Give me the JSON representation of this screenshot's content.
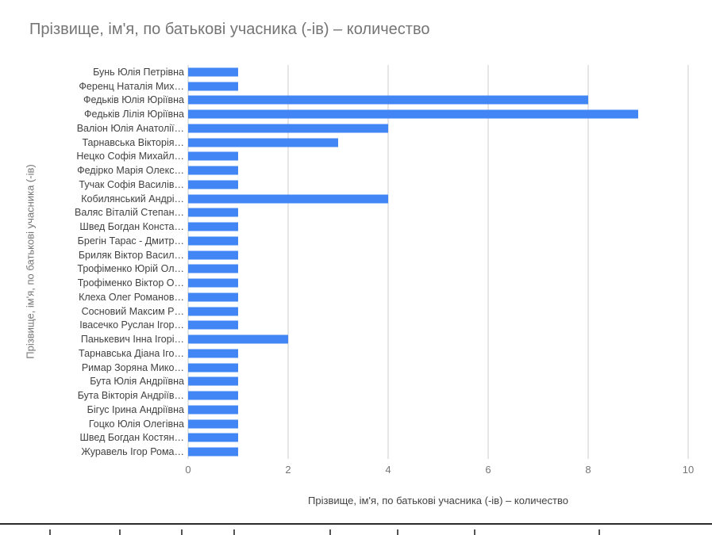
{
  "colors": {
    "bar": "#4285f4",
    "gridline": "#cccccc",
    "title_text": "#757575",
    "axis_text": "#757575",
    "category_text": "#424242",
    "background": "#ffffff"
  },
  "chart_data": {
    "type": "bar",
    "orientation": "horizontal",
    "title": "Прізвище, ім'я, по батькові учасника (-ів) – количество",
    "xlabel": "Прізвище, ім'я, по батькові учасника (-ів) – количество",
    "ylabel": "Прізвище, ім'я, по батькові учасника (-ів)",
    "xlim": [
      0,
      10
    ],
    "x_ticks": [
      0,
      2,
      4,
      6,
      8,
      10
    ],
    "grid": true,
    "legend": "none",
    "categories": [
      "Бунь Юлія Петрівна",
      "Ференц Наталія Мих…",
      "Федьків Юлія Юріївна",
      "Федьків Лілія Юріївна",
      "Валіон Юлія Анатолії…",
      "Тарнавська Вікторія…",
      "Нецко Софія Михайл…",
      "Федірко Марія Олекс…",
      "Тучак Софія Василів…",
      "Кобилянський Андрі…",
      "Валяс Віталій Степан…",
      "Швед Богдан Конста…",
      "Брегін Тарас - Дмитр…",
      "Бриляк Віктор Васил…",
      "Трофіменко Юрій Ол…",
      "Трофіменко Віктор О…",
      "Клеха Олег Романов…",
      "Сосновий Максим Р…",
      "Івасечко Руслан Ігор…",
      "Панькевич Інна Ігорі…",
      "Тарнавська Діана Іго…",
      "Римар Зоряна Мико…",
      "Бута Юлія Андріївна",
      "Бута Вікторія Андріїв…",
      "Бігус Ірина Андріївна",
      "Гоцко Юлія Олегівна",
      "Швед Богдан Костян…",
      "Журавель Ігор Рома…"
    ],
    "values": [
      1,
      1,
      8,
      9,
      4,
      3,
      1,
      1,
      1,
      4,
      1,
      1,
      1,
      1,
      1,
      1,
      1,
      1,
      1,
      2,
      1,
      1,
      1,
      1,
      1,
      1,
      1,
      1
    ]
  }
}
